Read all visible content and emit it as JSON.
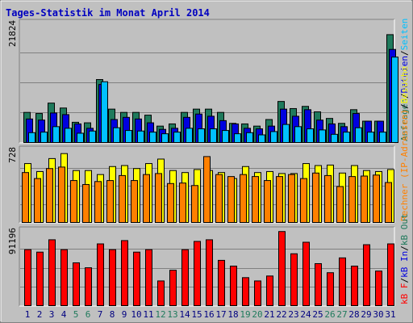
{
  "window": {
    "title": "Tages-Statistik im Monat April 2014"
  },
  "colors": {
    "anfragen": "#1f7a5c",
    "dateien": "#0000e0",
    "seiten": "#00c0ff",
    "rechner": "#ffff00",
    "besuche": "#ff8000",
    "kb": "#ff0000",
    "weekend_label": "#1f7a5c",
    "weekday_label": "#000080",
    "panel_bg": "#c0c0c0"
  },
  "chart_data": [
    {
      "type": "bar",
      "panel": "top",
      "ymax_label": "21824",
      "ymax": 21824,
      "categories": [
        "1",
        "2",
        "3",
        "4",
        "5",
        "6",
        "7",
        "8",
        "9",
        "10",
        "11",
        "12",
        "13",
        "14",
        "15",
        "16",
        "17",
        "18",
        "19",
        "20",
        "21",
        "22",
        "23",
        "24",
        "25",
        "26",
        "27",
        "28",
        "29",
        "30",
        "31"
      ],
      "weekend_days": [
        "5",
        "6",
        "12",
        "13",
        "19",
        "20",
        "26",
        "27"
      ],
      "right_label_parts": [
        {
          "text": "Anfragen",
          "color": "#1f7a5c"
        },
        {
          "text": "/",
          "color": "#000000"
        },
        {
          "text": "Dateien",
          "color": "#0000e0"
        },
        {
          "text": "/",
          "color": "#000000"
        },
        {
          "text": "Seiten",
          "color": "#00c0ff"
        }
      ],
      "series": [
        {
          "name": "Anfragen",
          "values": [
            5500,
            5300,
            7200,
            6300,
            3700,
            3600,
            11500,
            6100,
            5500,
            5500,
            5000,
            3000,
            3400,
            5500,
            6100,
            6100,
            5500,
            3500,
            3400,
            3000,
            4200,
            7500,
            6200,
            6600,
            5600,
            4400,
            3500,
            6000,
            3900,
            3900,
            19700
          ]
        },
        {
          "name": "Dateien",
          "values": [
            4300,
            4100,
            5400,
            5100,
            3400,
            2600,
            10600,
            4200,
            4600,
            4300,
            3600,
            2400,
            2600,
            4600,
            5200,
            4800,
            4000,
            3400,
            2600,
            2500,
            3000,
            6100,
            4800,
            6000,
            4100,
            3400,
            2900,
            5300,
            3900,
            3900,
            17000
          ]
        },
        {
          "name": "Seiten",
          "values": [
            1800,
            1900,
            2900,
            2600,
            1700,
            2100,
            11100,
            2700,
            2200,
            2100,
            1900,
            1600,
            1900,
            2600,
            2500,
            2500,
            2200,
            1600,
            1800,
            1400,
            2000,
            3300,
            2900,
            2500,
            2300,
            1500,
            1900,
            2700,
            1900,
            1900,
            15600
          ]
        }
      ]
    },
    {
      "type": "bar",
      "panel": "middle",
      "ymax_label": "728",
      "ymax": 728,
      "right_label_parts": [
        {
          "text": "Rechner (IP-Adressen)",
          "color": "#ff8000"
        },
        {
          "text": "/",
          "color": "#000000"
        },
        {
          "text": "Besuche",
          "color": "#ffff00"
        }
      ],
      "series": [
        {
          "name": "Besuche",
          "values": [
            590,
            510,
            640,
            690,
            520,
            520,
            480,
            560,
            570,
            540,
            590,
            635,
            520,
            500,
            530,
            520,
            500,
            440,
            560,
            500,
            510,
            490,
            490,
            590,
            570,
            575,
            495,
            570,
            520,
            510,
            530
          ]
        },
        {
          "name": "Rechner (IP-Adressen)",
          "values": [
            500,
            440,
            540,
            555,
            420,
            380,
            410,
            420,
            470,
            420,
            480,
            490,
            390,
            395,
            370,
            660,
            480,
            460,
            480,
            460,
            420,
            460,
            480,
            440,
            495,
            470,
            360,
            460,
            465,
            475,
            400
          ]
        }
      ]
    },
    {
      "type": "bar",
      "panel": "bottom",
      "ymax_label": "91196",
      "ymax": 91196,
      "right_label_parts": [
        {
          "text": "kB F",
          "color": "#ff0000"
        },
        {
          "text": "/",
          "color": "#000000"
        },
        {
          "text": "kB In",
          "color": "#0000e0"
        },
        {
          "text": "/",
          "color": "#000000"
        },
        {
          "text": "kB Out",
          "color": "#1f7a5c"
        }
      ],
      "series": [
        {
          "name": "kB F",
          "values": [
            68000,
            65000,
            80000,
            68000,
            52000,
            46000,
            75000,
            68000,
            79000,
            65000,
            68000,
            30000,
            43000,
            68000,
            78000,
            80000,
            55000,
            48000,
            34000,
            30000,
            36000,
            90000,
            63000,
            77000,
            51000,
            40000,
            58000,
            48000,
            74000,
            42000,
            75000
          ]
        }
      ]
    }
  ]
}
